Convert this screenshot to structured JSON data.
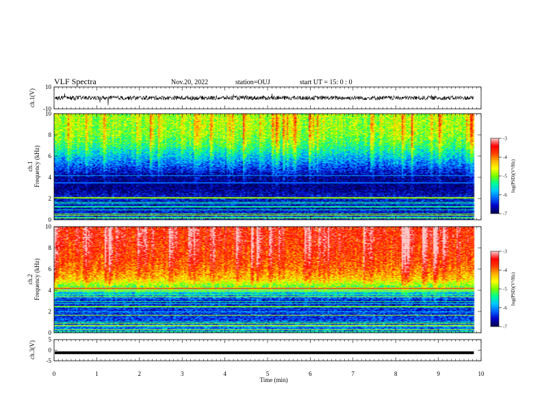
{
  "header": {
    "title": "VLF Spectra",
    "date": "Nov.20, 2022",
    "station": "station=OUJ",
    "start": "start  UT =   15: 0  : 0"
  },
  "colors": {
    "waveform": "#000000",
    "colormap": [
      "#000050",
      "#0000c8",
      "#0064ff",
      "#00c8ff",
      "#00ff96",
      "#78ff00",
      "#ffff00",
      "#ffb400",
      "#ff4000",
      "#ff0000",
      "#ffc8c8"
    ]
  },
  "chart_data": [
    {
      "type": "line",
      "panel": "ch1-waveform",
      "ylabel": "ch.1(V)",
      "ylim": [
        -10,
        10
      ],
      "y_ticks": [
        "10",
        "-10"
      ],
      "series": [
        {
          "values_approx_center": 0,
          "amplitude_approx": 2
        }
      ]
    },
    {
      "type": "heatmap",
      "panel": "ch1-spectrogram",
      "ylabel": "ch.1\nFrequency (kHz)",
      "ylim": [
        0,
        10
      ],
      "y_ticks": [
        "0",
        "2",
        "4",
        "6",
        "8",
        "10"
      ],
      "colorbar": {
        "label": "log(PSD)(V²/Hz)",
        "range": [
          -7,
          -3
        ],
        "ticks": [
          "-3",
          "-4",
          "-5",
          "-6",
          "-7"
        ]
      },
      "log_psd_profile_by_khz": [
        {
          "khz": 0,
          "value": -6.3
        },
        {
          "khz": 1,
          "value": -6.6
        },
        {
          "khz": 2,
          "value": -6.5
        },
        {
          "khz": 3,
          "value": -6.9
        },
        {
          "khz": 4,
          "value": -6.8
        },
        {
          "khz": 5,
          "value": -6.3
        },
        {
          "khz": 6,
          "value": -5.8
        },
        {
          "khz": 7,
          "value": -5.3
        },
        {
          "khz": 8,
          "value": -5.0
        },
        {
          "khz": 9,
          "value": -4.9
        },
        {
          "khz": 10,
          "value": -4.9
        }
      ]
    },
    {
      "type": "heatmap",
      "panel": "ch2-spectrogram",
      "ylabel": "ch.2\nFrequency (kHz)",
      "ylim": [
        0,
        10
      ],
      "y_ticks": [
        "0",
        "2",
        "4",
        "6",
        "8",
        "10"
      ],
      "colorbar": {
        "label": "log(PSD)(V²/Hz)",
        "range": [
          -7,
          -3
        ],
        "ticks": [
          "-3",
          "-4",
          "-5",
          "-6",
          "-7"
        ]
      },
      "log_psd_profile_by_khz": [
        {
          "khz": 0,
          "value": -6.0
        },
        {
          "khz": 1,
          "value": -6.3
        },
        {
          "khz": 2,
          "value": -6.4
        },
        {
          "khz": 3,
          "value": -6.5
        },
        {
          "khz": 4,
          "value": -5.5
        },
        {
          "khz": 5,
          "value": -4.4
        },
        {
          "khz": 6,
          "value": -4.0
        },
        {
          "khz": 7,
          "value": -3.8
        },
        {
          "khz": 8,
          "value": -3.7
        },
        {
          "khz": 9,
          "value": -3.6
        },
        {
          "khz": 10,
          "value": -3.6
        }
      ]
    },
    {
      "type": "line",
      "panel": "ch3-waveform",
      "ylabel": "ch.3(V)",
      "ylim": [
        -5,
        5
      ],
      "y_ticks": [
        "5",
        "0",
        "-5"
      ],
      "series": [
        {
          "values_approx_center": -1.2,
          "amplitude_approx": 0.2
        }
      ]
    }
  ],
  "x_axis": {
    "label": "Time  (min)",
    "xlim": [
      0,
      10
    ],
    "ticks": [
      "0",
      "1",
      "2",
      "3",
      "4",
      "5",
      "6",
      "7",
      "8",
      "9",
      "10"
    ],
    "data_end_min": 9.83
  }
}
